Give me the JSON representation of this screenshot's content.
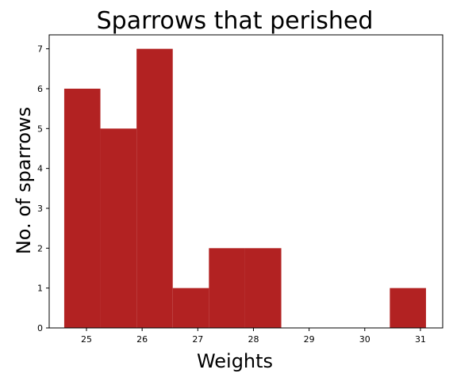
{
  "chart_data": {
    "type": "bar",
    "title": "Sparrows that perished",
    "xlabel": "Weights",
    "ylabel": "No. of sparrows",
    "bar_color": "#b22222",
    "bins": [
      {
        "start": 24.6,
        "end": 25.25,
        "count": 6
      },
      {
        "start": 25.25,
        "end": 25.9,
        "count": 5
      },
      {
        "start": 25.9,
        "end": 26.55,
        "count": 7
      },
      {
        "start": 26.55,
        "end": 27.2,
        "count": 1
      },
      {
        "start": 27.2,
        "end": 27.85,
        "count": 2
      },
      {
        "start": 27.85,
        "end": 28.5,
        "count": 2
      },
      {
        "start": 28.5,
        "end": 29.15,
        "count": 0
      },
      {
        "start": 29.15,
        "end": 29.8,
        "count": 0
      },
      {
        "start": 29.8,
        "end": 30.45,
        "count": 0
      },
      {
        "start": 30.45,
        "end": 31.1,
        "count": 1
      }
    ],
    "xlim": [
      24.33,
      31.4
    ],
    "ylim": [
      0,
      7.35
    ],
    "xticks": [
      "25",
      "26",
      "27",
      "28",
      "29",
      "30",
      "31"
    ],
    "yticks": [
      "0",
      "1",
      "2",
      "3",
      "4",
      "5",
      "6",
      "7"
    ],
    "grid": false
  }
}
